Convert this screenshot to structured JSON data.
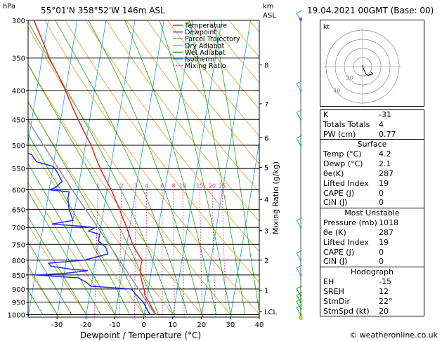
{
  "header": {
    "location": "55°01'N  358°52'W  146m  ASL",
    "datetime": "19.04.2021  00GMT  (Base: 00)",
    "hpa_label": "hPa",
    "km_label": "km",
    "asl_label": "ASL"
  },
  "legend": [
    {
      "name": "Temperature",
      "color": "#e8261c"
    },
    {
      "name": "Dewpoint",
      "color": "#1a2fe0"
    },
    {
      "name": "Parcel Trajectory",
      "color": "#999999"
    },
    {
      "name": "Dry Adiabat",
      "color": "#e69a1a"
    },
    {
      "name": "Wet Adiabat",
      "color": "#18a818"
    },
    {
      "name": "Isotherm",
      "color": "#18a0e0"
    },
    {
      "name": "Mixing Ratio",
      "color": "#e0359a"
    }
  ],
  "chart_data": {
    "type": "line",
    "xlabel": "Dewpoint / Temperature (°C)",
    "ylabel": "",
    "x_ticks": [
      -30,
      -20,
      -10,
      0,
      10,
      20,
      30,
      40
    ],
    "xlim": [
      -40,
      40
    ],
    "y_ticks_hpa": [
      300,
      350,
      400,
      450,
      500,
      550,
      600,
      650,
      700,
      750,
      800,
      850,
      900,
      950,
      1000
    ],
    "ylim_hpa": [
      1010,
      300
    ],
    "y_scale": "log",
    "skew": true,
    "km_ticks": [
      {
        "label": "8",
        "p": 360
      },
      {
        "label": "7",
        "p": 422
      },
      {
        "label": "6",
        "p": 485
      },
      {
        "label": "5",
        "p": 547
      },
      {
        "label": "4",
        "p": 624
      },
      {
        "label": "3",
        "p": 709
      },
      {
        "label": "2",
        "p": 800
      },
      {
        "label": "1",
        "p": 904
      },
      {
        "label": "LCL",
        "p": 987
      }
    ],
    "mixing_ratio_label": "Mixing Ratio (g/kg)",
    "mixing_ratio_ticks": [
      "1",
      "2",
      "3",
      "4",
      "6",
      "8",
      "10",
      "15",
      "20",
      "25"
    ],
    "series": [
      {
        "name": "Temperature",
        "points": [
          [
            1000,
            4.2
          ],
          [
            975,
            2.5
          ],
          [
            950,
            1.0
          ],
          [
            925,
            -0.8
          ],
          [
            900,
            -1.5
          ],
          [
            875,
            -2.6
          ],
          [
            850,
            -3.5
          ],
          [
            825,
            -4.0
          ],
          [
            800,
            -3.8
          ],
          [
            775,
            -6.0
          ],
          [
            750,
            -8.0
          ],
          [
            725,
            -9.5
          ],
          [
            700,
            -11.0
          ],
          [
            675,
            -12.8
          ],
          [
            650,
            -14.5
          ],
          [
            625,
            -16.5
          ],
          [
            600,
            -18.5
          ],
          [
            575,
            -21.0
          ],
          [
            550,
            -23.5
          ],
          [
            525,
            -25.8
          ],
          [
            500,
            -28.0
          ],
          [
            475,
            -31.0
          ],
          [
            450,
            -34.0
          ],
          [
            425,
            -37.0
          ],
          [
            400,
            -40.0
          ],
          [
            375,
            -43.5
          ],
          [
            350,
            -47.5
          ],
          [
            325,
            -51.0
          ],
          [
            300,
            -55.0
          ]
        ]
      },
      {
        "name": "Dewpoint",
        "points": [
          [
            1000,
            2.1
          ],
          [
            975,
            0.5
          ],
          [
            950,
            -1.0
          ],
          [
            925,
            -3.5
          ],
          [
            900,
            -6.0
          ],
          [
            890,
            -20.0
          ],
          [
            875,
            -22.0
          ],
          [
            860,
            -25.0
          ],
          [
            850,
            -40.0
          ],
          [
            845,
            -30.0
          ],
          [
            835,
            -22.0
          ],
          [
            830,
            -28.0
          ],
          [
            820,
            -35.0
          ],
          [
            810,
            -36.0
          ],
          [
            800,
            -24.0
          ],
          [
            780,
            -16.0
          ],
          [
            760,
            -17.0
          ],
          [
            740,
            -20.0
          ],
          [
            720,
            -20.0
          ],
          [
            710,
            -24.0
          ],
          [
            700,
            -22.0
          ],
          [
            690,
            -37.0
          ],
          [
            680,
            -30.0
          ],
          [
            650,
            -32.0
          ],
          [
            620,
            -33.0
          ],
          [
            605,
            -33.0
          ],
          [
            600,
            -40.0
          ],
          [
            595,
            -38.0
          ],
          [
            580,
            -36.0
          ],
          [
            560,
            -38.0
          ],
          [
            545,
            -40.0
          ],
          [
            535,
            -46.0
          ],
          [
            520,
            -48.0
          ],
          [
            500,
            -56.0
          ],
          [
            450,
            -58.0
          ],
          [
            430,
            -60.0
          ],
          [
            410,
            -64.0
          ],
          [
            400,
            -66.0
          ],
          [
            385,
            -70.0
          ],
          [
            360,
            -76.0
          ],
          [
            340,
            -78.0
          ],
          [
            325,
            -79.0
          ],
          [
            310,
            -79.0
          ],
          [
            300,
            -77.0
          ]
        ]
      },
      {
        "name": "Parcel Trajectory",
        "points": [
          [
            1000,
            4.2
          ],
          [
            987,
            2.9
          ],
          [
            950,
            0.2
          ],
          [
            900,
            -3.4
          ],
          [
            850,
            -7.4
          ],
          [
            800,
            -11.7
          ],
          [
            750,
            -16.2
          ],
          [
            700,
            -21.0
          ],
          [
            650,
            -26.3
          ],
          [
            600,
            -32.0
          ],
          [
            550,
            -38.0
          ],
          [
            500,
            -44.5
          ],
          [
            450,
            -51.5
          ],
          [
            400,
            -59.0
          ],
          [
            350,
            -67.0
          ],
          [
            300,
            -76.0
          ]
        ]
      }
    ],
    "wind_barbs_hpa": [
      1000,
      975,
      950,
      925,
      850,
      800,
      700,
      500,
      450,
      400,
      300
    ],
    "hodograph": {
      "label": "kt",
      "rings_kt": [
        10,
        20,
        30,
        40
      ],
      "ring_labels": [
        "20",
        "40"
      ],
      "trace": [
        [
          0.0,
          2.0
        ],
        [
          1.0,
          -2.0
        ],
        [
          2.0,
          -5.0
        ],
        [
          5.0,
          -11.0
        ],
        [
          8.0,
          -12.0
        ],
        [
          14.0,
          -10.0
        ]
      ]
    }
  },
  "indices": [
    {
      "label": "K",
      "value": "-31"
    },
    {
      "label": "Totals Totals",
      "value": "4"
    },
    {
      "label": "PW (cm)",
      "value": "0.77"
    }
  ],
  "surface": {
    "title": "Surface",
    "rows": [
      {
        "label": "Temp (°C)",
        "value": "4.2"
      },
      {
        "label": "Dewp (°C)",
        "value": "2.1"
      },
      {
        "label": "θe(K)",
        "value": "287"
      },
      {
        "label": "Lifted Index",
        "value": "19"
      },
      {
        "label": "CAPE (J)",
        "value": "0"
      },
      {
        "label": "CIN (J)",
        "value": "0"
      }
    ]
  },
  "most_unstable": {
    "title": "Most Unstable",
    "rows": [
      {
        "label": "Pressure (mb)",
        "value": "1018"
      },
      {
        "label": "θe (K)",
        "value": "287"
      },
      {
        "label": "Lifted Index",
        "value": "19"
      },
      {
        "label": "CAPE (J)",
        "value": "0"
      },
      {
        "label": "CIN (J)",
        "value": "0"
      }
    ]
  },
  "hodograph_table": {
    "title": "Hodograph",
    "rows": [
      {
        "label": "EH",
        "value": "-15"
      },
      {
        "label": "SREH",
        "value": "12"
      },
      {
        "label": "StmDir",
        "value": "22°"
      },
      {
        "label": "StmSpd (kt)",
        "value": "20"
      }
    ]
  },
  "footer": {
    "credit": "© weatheronline.co.uk"
  }
}
